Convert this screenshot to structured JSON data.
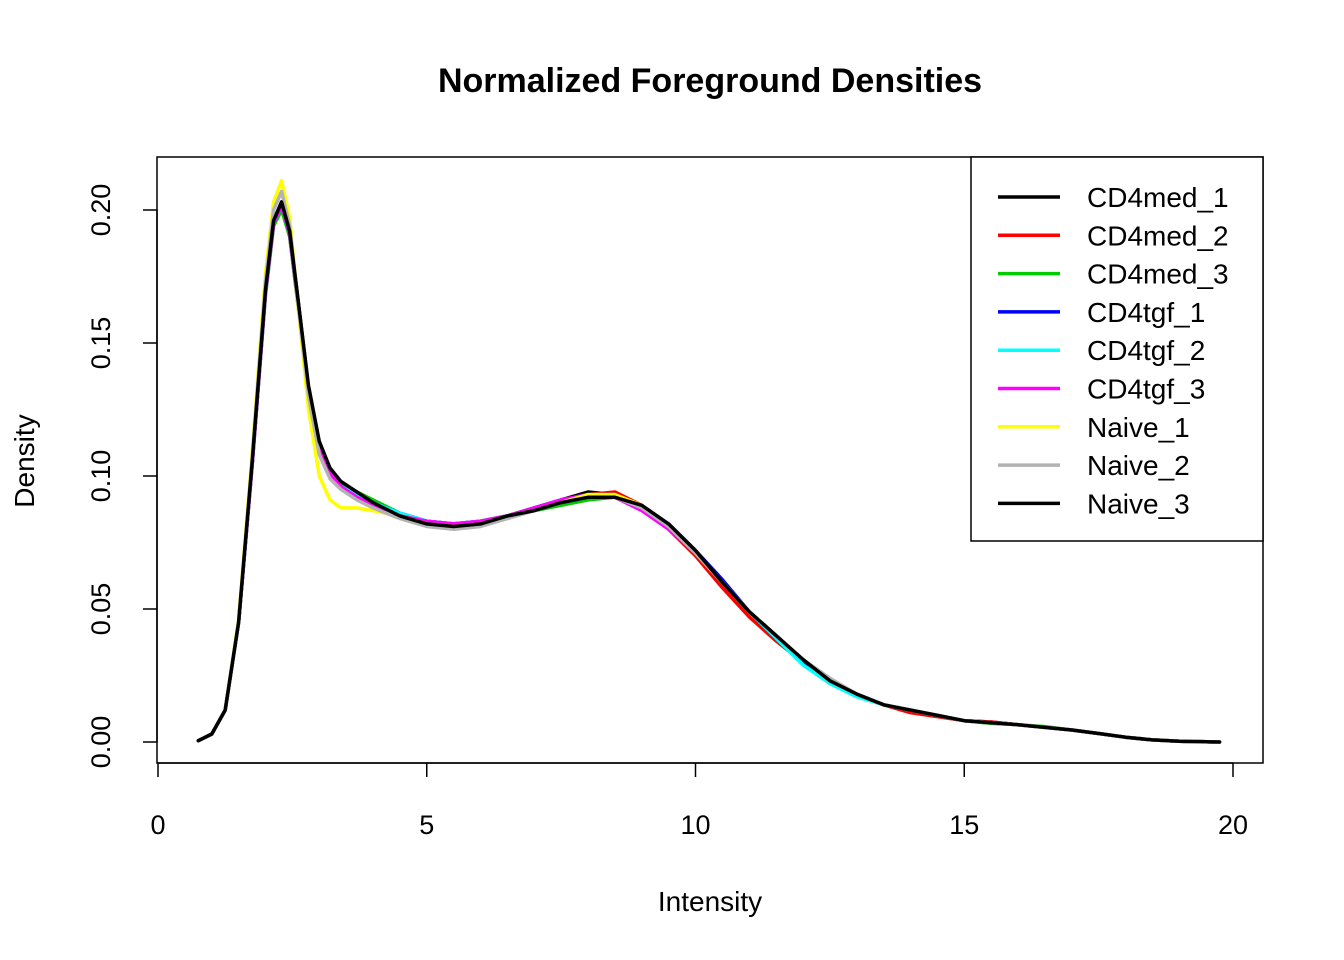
{
  "chart_data": {
    "type": "line",
    "title": "Normalized Foreground Densities",
    "xlabel": "Intensity",
    "ylabel": "Density",
    "xlim": [
      0,
      20
    ],
    "ylim": [
      0,
      0.21
    ],
    "x_ticks": [
      0,
      5,
      10,
      15,
      20
    ],
    "x_tick_labels": [
      "0",
      "5",
      "10",
      "15",
      "20"
    ],
    "y_ticks": [
      0.0,
      0.05,
      0.1,
      0.15,
      0.2
    ],
    "y_tick_labels": [
      "0.00",
      "0.05",
      "0.10",
      "0.15",
      "0.20"
    ],
    "legend_position": "top-right",
    "grid": false,
    "x": [
      0.75,
      1.0,
      1.25,
      1.5,
      1.75,
      2.0,
      2.15,
      2.3,
      2.45,
      2.6,
      2.8,
      3.0,
      3.2,
      3.4,
      3.7,
      4.0,
      4.5,
      5.0,
      5.5,
      6.0,
      6.5,
      7.0,
      7.5,
      8.0,
      8.5,
      9.0,
      9.5,
      10.0,
      10.5,
      11.0,
      11.5,
      12.0,
      12.5,
      13.0,
      13.5,
      14.0,
      14.5,
      15.0,
      15.5,
      16.0,
      16.5,
      17.0,
      17.5,
      18.0,
      18.5,
      19.0,
      19.5,
      19.75
    ],
    "series": [
      {
        "name": "CD4med_1",
        "color": "#000000",
        "values": [
          0.0005,
          0.003,
          0.012,
          0.045,
          0.105,
          0.17,
          0.196,
          0.203,
          0.192,
          0.167,
          0.133,
          0.112,
          0.102,
          0.097,
          0.093,
          0.089,
          0.085,
          0.082,
          0.081,
          0.082,
          0.085,
          0.088,
          0.091,
          0.094,
          0.093,
          0.088,
          0.081,
          0.071,
          0.06,
          0.049,
          0.04,
          0.031,
          0.023,
          0.018,
          0.014,
          0.012,
          0.01,
          0.008,
          0.0075,
          0.0065,
          0.0055,
          0.0045,
          0.0032,
          0.0018,
          0.0008,
          0.0003,
          0.0001,
          0.0
        ]
      },
      {
        "name": "CD4med_2",
        "color": "#ff0000",
        "values": [
          0.0005,
          0.003,
          0.012,
          0.045,
          0.104,
          0.169,
          0.195,
          0.201,
          0.19,
          0.165,
          0.132,
          0.111,
          0.101,
          0.096,
          0.092,
          0.088,
          0.085,
          0.083,
          0.082,
          0.083,
          0.085,
          0.087,
          0.09,
          0.093,
          0.094,
          0.089,
          0.08,
          0.07,
          0.058,
          0.047,
          0.038,
          0.03,
          0.023,
          0.018,
          0.014,
          0.011,
          0.0095,
          0.008,
          0.0075,
          0.0065,
          0.0055,
          0.0045,
          0.0032,
          0.0018,
          0.0008,
          0.0003,
          0.0001,
          0.0
        ]
      },
      {
        "name": "CD4med_3",
        "color": "#00cc00",
        "values": [
          0.0005,
          0.003,
          0.012,
          0.045,
          0.104,
          0.168,
          0.194,
          0.2,
          0.19,
          0.165,
          0.132,
          0.111,
          0.101,
          0.097,
          0.094,
          0.091,
          0.086,
          0.083,
          0.082,
          0.083,
          0.085,
          0.087,
          0.089,
          0.091,
          0.092,
          0.088,
          0.081,
          0.071,
          0.06,
          0.049,
          0.04,
          0.031,
          0.023,
          0.018,
          0.014,
          0.012,
          0.01,
          0.008,
          0.007,
          0.0065,
          0.0058,
          0.0045,
          0.0032,
          0.0018,
          0.0008,
          0.0003,
          0.0001,
          0.0
        ]
      },
      {
        "name": "CD4tgf_1",
        "color": "#0000ff",
        "values": [
          0.0005,
          0.003,
          0.012,
          0.045,
          0.104,
          0.169,
          0.195,
          0.202,
          0.191,
          0.166,
          0.132,
          0.111,
          0.101,
          0.096,
          0.093,
          0.09,
          0.086,
          0.083,
          0.082,
          0.083,
          0.085,
          0.088,
          0.091,
          0.093,
          0.092,
          0.088,
          0.082,
          0.072,
          0.061,
          0.049,
          0.039,
          0.03,
          0.023,
          0.018,
          0.014,
          0.012,
          0.01,
          0.008,
          0.0072,
          0.0065,
          0.0055,
          0.0045,
          0.0032,
          0.0018,
          0.0008,
          0.0003,
          0.0001,
          0.0
        ]
      },
      {
        "name": "CD4tgf_2",
        "color": "#00ffff",
        "values": [
          0.0005,
          0.003,
          0.012,
          0.045,
          0.104,
          0.169,
          0.195,
          0.202,
          0.191,
          0.166,
          0.132,
          0.111,
          0.101,
          0.096,
          0.093,
          0.09,
          0.086,
          0.083,
          0.082,
          0.083,
          0.085,
          0.087,
          0.09,
          0.093,
          0.093,
          0.088,
          0.081,
          0.071,
          0.06,
          0.049,
          0.039,
          0.029,
          0.022,
          0.017,
          0.014,
          0.012,
          0.01,
          0.008,
          0.0072,
          0.0065,
          0.0055,
          0.0045,
          0.0032,
          0.0018,
          0.0008,
          0.0003,
          0.0001,
          0.0
        ]
      },
      {
        "name": "CD4tgf_3",
        "color": "#ff00ff",
        "values": [
          0.0005,
          0.003,
          0.012,
          0.045,
          0.104,
          0.169,
          0.195,
          0.202,
          0.191,
          0.166,
          0.132,
          0.111,
          0.101,
          0.096,
          0.092,
          0.089,
          0.085,
          0.083,
          0.082,
          0.083,
          0.085,
          0.088,
          0.091,
          0.093,
          0.092,
          0.087,
          0.08,
          0.071,
          0.06,
          0.049,
          0.04,
          0.031,
          0.023,
          0.018,
          0.014,
          0.012,
          0.01,
          0.008,
          0.0072,
          0.0065,
          0.0055,
          0.0045,
          0.0032,
          0.0018,
          0.0008,
          0.0003,
          0.0001,
          0.0
        ]
      },
      {
        "name": "Naive_1",
        "color": "#ffff00",
        "values": [
          0.0005,
          0.003,
          0.012,
          0.046,
          0.108,
          0.176,
          0.203,
          0.211,
          0.197,
          0.165,
          0.125,
          0.1,
          0.091,
          0.088,
          0.088,
          0.087,
          0.085,
          0.082,
          0.081,
          0.082,
          0.085,
          0.087,
          0.09,
          0.093,
          0.093,
          0.089,
          0.081,
          0.071,
          0.06,
          0.049,
          0.04,
          0.031,
          0.023,
          0.018,
          0.014,
          0.012,
          0.01,
          0.008,
          0.0072,
          0.0065,
          0.0055,
          0.0045,
          0.0032,
          0.0018,
          0.0008,
          0.0003,
          0.0001,
          0.0
        ]
      },
      {
        "name": "Naive_2",
        "color": "#b3b3b3",
        "values": [
          0.0005,
          0.003,
          0.012,
          0.045,
          0.106,
          0.173,
          0.2,
          0.207,
          0.194,
          0.166,
          0.13,
          0.108,
          0.099,
          0.095,
          0.091,
          0.088,
          0.084,
          0.081,
          0.08,
          0.081,
          0.084,
          0.087,
          0.09,
          0.092,
          0.092,
          0.088,
          0.081,
          0.071,
          0.06,
          0.049,
          0.04,
          0.031,
          0.024,
          0.018,
          0.014,
          0.012,
          0.01,
          0.008,
          0.0072,
          0.0065,
          0.0055,
          0.0045,
          0.0032,
          0.0018,
          0.0008,
          0.0003,
          0.0001,
          0.0
        ]
      },
      {
        "name": "Naive_3",
        "color": "#000000",
        "values": [
          0.0005,
          0.003,
          0.012,
          0.045,
          0.105,
          0.17,
          0.196,
          0.203,
          0.192,
          0.167,
          0.134,
          0.113,
          0.103,
          0.098,
          0.094,
          0.09,
          0.085,
          0.082,
          0.081,
          0.082,
          0.085,
          0.087,
          0.09,
          0.092,
          0.092,
          0.089,
          0.082,
          0.072,
          0.06,
          0.049,
          0.04,
          0.031,
          0.023,
          0.018,
          0.014,
          0.012,
          0.01,
          0.008,
          0.0072,
          0.0065,
          0.0055,
          0.0045,
          0.0032,
          0.0018,
          0.0008,
          0.0003,
          0.0001,
          0.0
        ]
      }
    ]
  }
}
